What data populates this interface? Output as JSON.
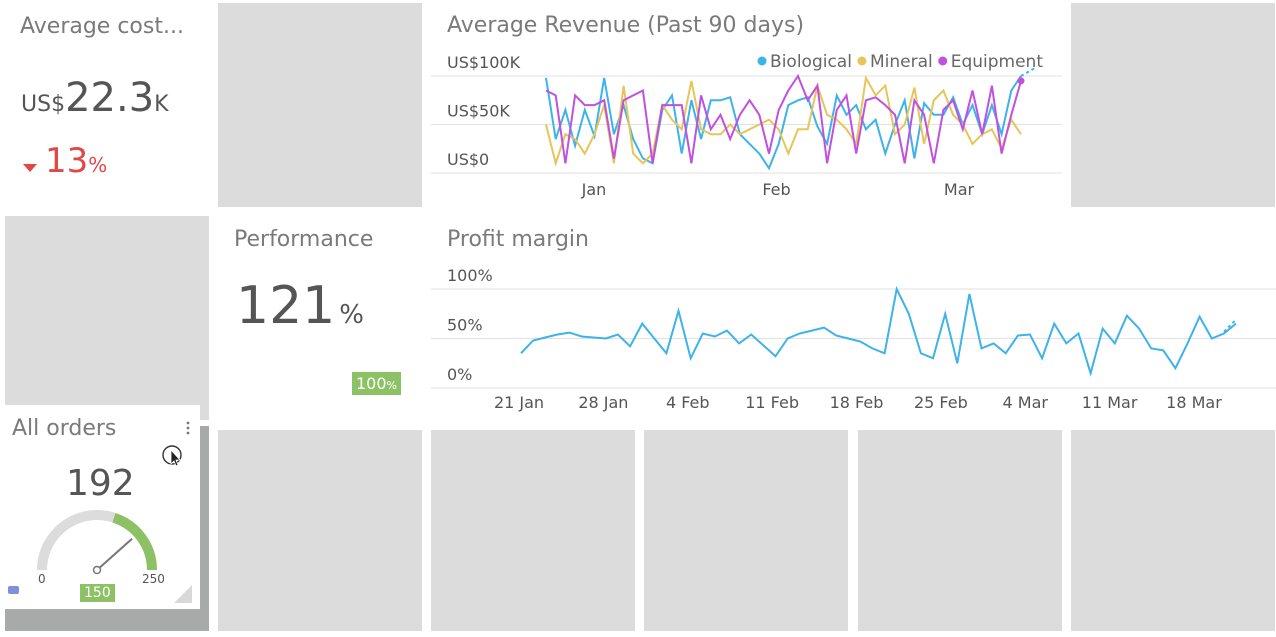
{
  "avg_cost": {
    "title": "Average cost...",
    "currency": "US$",
    "value": "22.3",
    "suffix": "K",
    "change": "13",
    "change_unit": "%",
    "change_color": "#e04848"
  },
  "performance": {
    "title": "Performance",
    "value": "121",
    "unit": "%",
    "target_value": "100",
    "target_unit": "%",
    "badge_color": "#8cc265"
  },
  "all_orders": {
    "title": "All orders",
    "value": "192",
    "gauge_min": "0",
    "gauge_max": "250",
    "gauge_target": "150",
    "gauge_level": 192
  },
  "colors": {
    "biological": "#3db3ea",
    "mineral": "#e6c55a",
    "equipment": "#c150e0",
    "profit": "#3db3ea",
    "green": "#8cc265"
  },
  "chart_data": [
    {
      "type": "line",
      "title": "Average Revenue (Past 90 days)",
      "y_ticks": [
        "US$100K",
        "US$50K",
        "US$0"
      ],
      "x_ticks": [
        "Jan",
        "Feb",
        "Mar"
      ],
      "ylim": [
        0,
        100
      ],
      "legend": "top-right",
      "series": [
        {
          "name": "Biological",
          "values": [
            98,
            35,
            65,
            28,
            65,
            38,
            98,
            40,
            70,
            35,
            15,
            10,
            65,
            80,
            20,
            75,
            35,
            75,
            75,
            78,
            40,
            30,
            20,
            5,
            30,
            70,
            75,
            78,
            48,
            30,
            80,
            60,
            70,
            45,
            55,
            20,
            50,
            75,
            15,
            72,
            60,
            60,
            78,
            50,
            70,
            40,
            70,
            40,
            85,
            100
          ]
        },
        {
          "name": "Mineral",
          "values": [
            50,
            10,
            40,
            35,
            20,
            40,
            70,
            10,
            90,
            20,
            10,
            20,
            70,
            55,
            45,
            95,
            45,
            40,
            40,
            50,
            40,
            45,
            50,
            55,
            45,
            20,
            45,
            45,
            90,
            60,
            55,
            45,
            30,
            98,
            80,
            90,
            40,
            50,
            88,
            30,
            75,
            85,
            60,
            50,
            30,
            40,
            45,
            25,
            55,
            40
          ]
        },
        {
          "name": "Equipment",
          "values": [
            85,
            80,
            10,
            80,
            70,
            70,
            75,
            15,
            75,
            80,
            85,
            10,
            70,
            70,
            70,
            10,
            80,
            45,
            60,
            35,
            60,
            75,
            60,
            20,
            65,
            85,
            100,
            75,
            90,
            10,
            65,
            80,
            20,
            75,
            78,
            70,
            60,
            10,
            75,
            60,
            10,
            65,
            75,
            45,
            85,
            40,
            90,
            20,
            60,
            95
          ]
        }
      ]
    },
    {
      "type": "line",
      "title": "Profit margin",
      "y_ticks": [
        "100%",
        "50%",
        "0%"
      ],
      "x_ticks": [
        "21 Jan",
        "28 Jan",
        "4 Feb",
        "11 Feb",
        "18 Feb",
        "25 Feb",
        "4 Mar",
        "11 Mar",
        "18 Mar"
      ],
      "ylim": [
        0,
        100
      ],
      "series": [
        {
          "name": "",
          "values": [
            35,
            48,
            51,
            54,
            56,
            52,
            51,
            50,
            54,
            42,
            65,
            50,
            35,
            78,
            30,
            55,
            52,
            58,
            45,
            54,
            43,
            32,
            50,
            55,
            58,
            61,
            53,
            50,
            47,
            40,
            35,
            100,
            75,
            35,
            30,
            75,
            25,
            95,
            40,
            45,
            35,
            53,
            54,
            30,
            65,
            45,
            55,
            15,
            60,
            45,
            73,
            60,
            40,
            38,
            20,
            45,
            72,
            50,
            55,
            65
          ]
        }
      ]
    }
  ]
}
